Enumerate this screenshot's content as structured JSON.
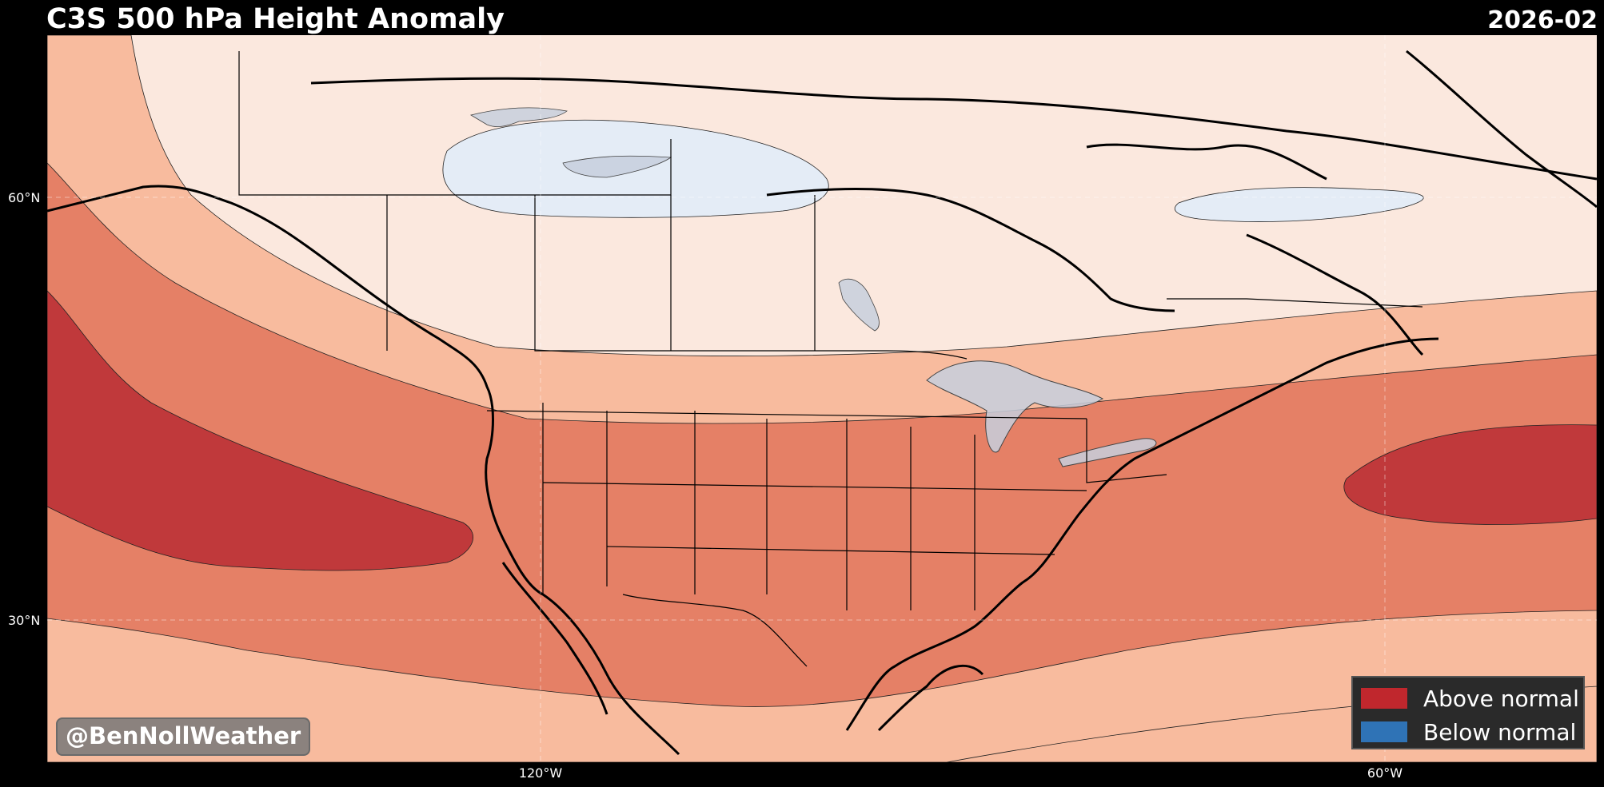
{
  "header": {
    "title": "C3S 500 hPa Height Anomaly",
    "date": "2026-02"
  },
  "axes": {
    "lat_labels": [
      "60°N",
      "30°N"
    ],
    "lon_labels": [
      "120°W",
      "60°W"
    ]
  },
  "credit": "@BenNollWeather",
  "legend": {
    "items": [
      {
        "label": "Above normal",
        "color": "#c0272d"
      },
      {
        "label": "Below normal",
        "color": "#2f73b6"
      }
    ]
  },
  "colors": {
    "anomaly_level_1": "#fbe8de",
    "anomaly_level_2": "#f8bb9e",
    "anomaly_level_3": "#e58066",
    "anomaly_level_4": "#c0393b",
    "negative_anomaly": "#e4ecf6",
    "lakes": "#c7cfdd",
    "background": "#000000"
  }
}
